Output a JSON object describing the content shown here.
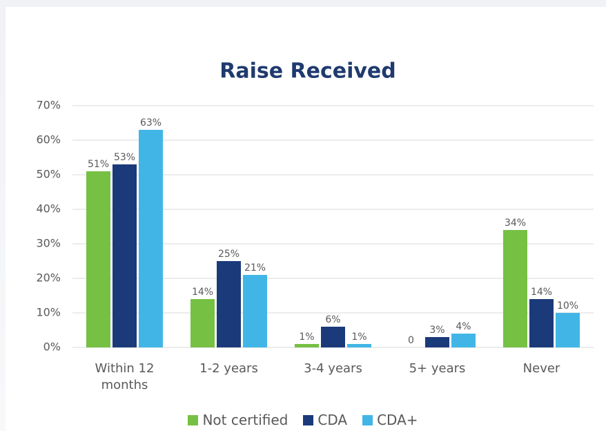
{
  "chart_data": {
    "type": "bar",
    "title": "Raise Received",
    "categories": [
      "Within 12 months",
      "1-2 years",
      "3-4 years",
      "5+ years",
      "Never"
    ],
    "series": [
      {
        "name": "Not certified",
        "color": "#76c043",
        "values": [
          51,
          14,
          1,
          0,
          34
        ],
        "value_labels": [
          "51%",
          "14%",
          "1%",
          "0",
          "34%"
        ]
      },
      {
        "name": "CDA",
        "color": "#1b3a7a",
        "values": [
          53,
          25,
          6,
          3,
          14
        ],
        "value_labels": [
          "53%",
          "25%",
          "6%",
          "3%",
          "14%"
        ]
      },
      {
        "name": "CDA+",
        "color": "#41b6e6",
        "values": [
          63,
          21,
          1,
          4,
          10
        ],
        "value_labels": [
          "63%",
          "21%",
          "1%",
          "4%",
          "10%"
        ]
      }
    ],
    "ylim": [
      0,
      70
    ],
    "yticks": [
      {
        "value": 0,
        "label": "0%"
      },
      {
        "value": 10,
        "label": "10%"
      },
      {
        "value": 20,
        "label": "20%"
      },
      {
        "value": 30,
        "label": "30%"
      },
      {
        "value": 40,
        "label": "40%"
      },
      {
        "value": 50,
        "label": "50%"
      },
      {
        "value": 60,
        "label": "60%"
      },
      {
        "value": 70,
        "label": "70%"
      }
    ],
    "grid": true,
    "legend": "bottom"
  }
}
